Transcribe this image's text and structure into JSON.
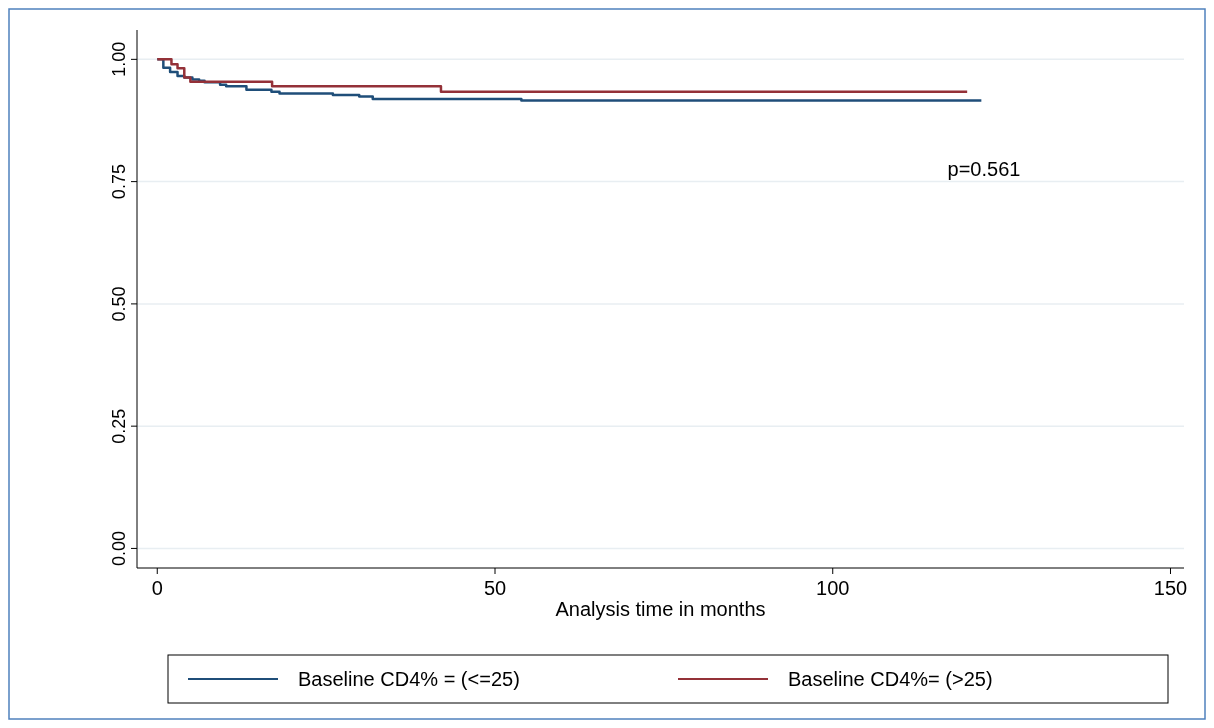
{
  "chart_data": {
    "type": "step",
    "xlabel": "Analysis time in months",
    "xlim": [
      -3,
      152
    ],
    "xticks": [
      0,
      50,
      100,
      150
    ],
    "ylim": [
      -0.04,
      1.06
    ],
    "yticks": [
      {
        "value": 0,
        "label": "0.00"
      },
      {
        "value": 0.25,
        "label": "0.25"
      },
      {
        "value": 0.5,
        "label": "0.50"
      },
      {
        "value": 0.75,
        "label": "0.75"
      },
      {
        "value": 1,
        "label": "1.00"
      }
    ],
    "grid": "y",
    "legend": "bottom",
    "line_style": "solid",
    "annotations": [
      "p=0.561"
    ],
    "series": [
      {
        "name": "Baseline CD4% = (<=25)",
        "color": "#1f4e79",
        "x": [
          0,
          0.9,
          1.9,
          3.0,
          4.0,
          5.2,
          6.2,
          7.0,
          9.3,
          10.2,
          13.2,
          16.9,
          18.1,
          26.0,
          29.9,
          31.9,
          53.9,
          122
        ],
        "values": [
          1,
          0.983,
          0.974,
          0.966,
          0.963,
          0.959,
          0.956,
          0.953,
          0.948,
          0.945,
          0.938,
          0.934,
          0.93,
          0.927,
          0.924,
          0.919,
          0.916,
          0.916
        ]
      },
      {
        "name": "Baseline CD4%= (>25)",
        "color": "#943138",
        "x": [
          0,
          2.1,
          3.0,
          4.0,
          4.9,
          17.0,
          42.0,
          119.9
        ],
        "values": [
          1,
          0.99,
          0.982,
          0.963,
          0.954,
          0.945,
          0.934,
          0.934
        ]
      }
    ]
  }
}
